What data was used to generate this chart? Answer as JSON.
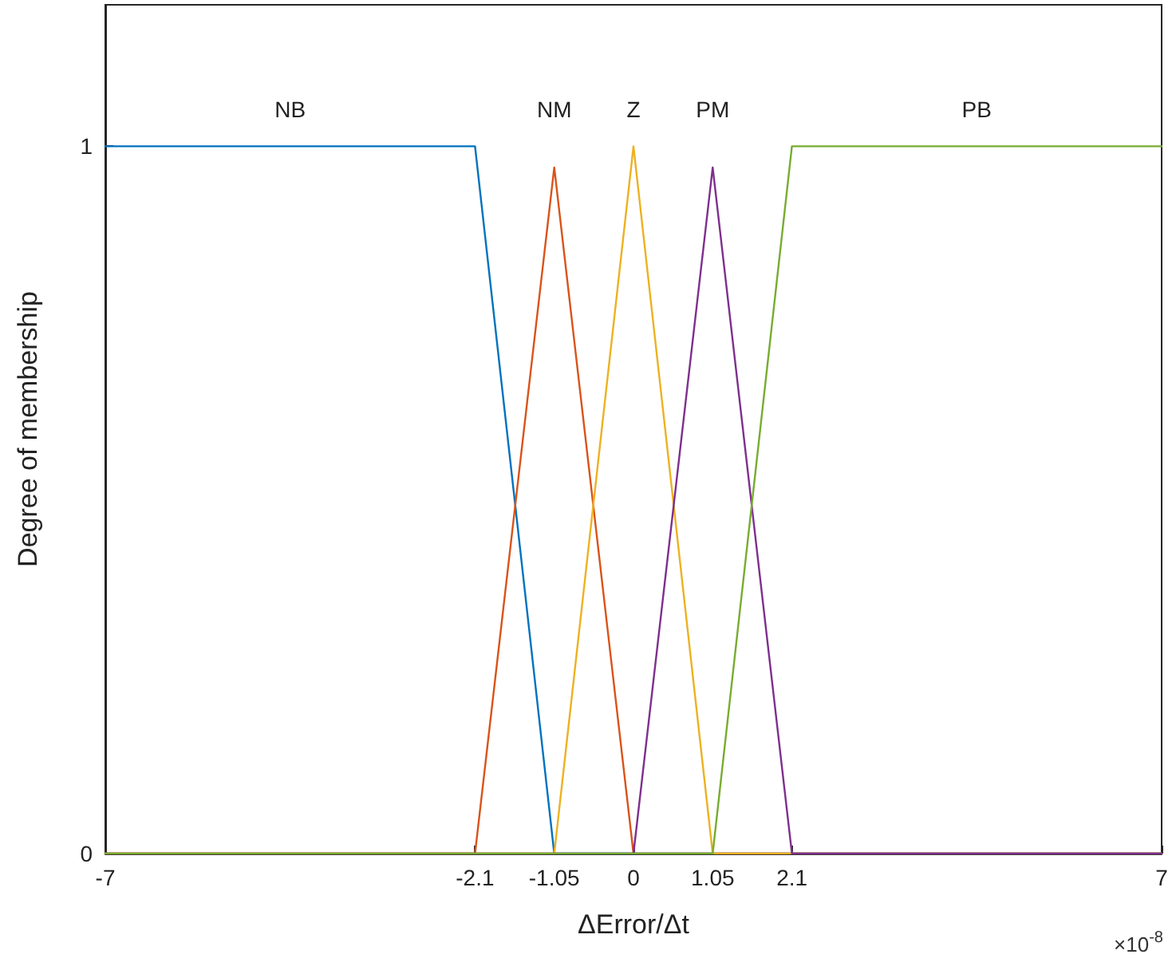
{
  "chart_data": {
    "type": "line",
    "xlabel": "ΔError/Δt",
    "ylabel": "Degree of membership",
    "annotations": [
      "×10$^{-8}$"
    ],
    "xlim": [
      -7,
      7
    ],
    "xticks": [
      -7,
      -2.1,
      -1.05,
      0,
      1.05,
      2.1,
      7
    ],
    "ylim": [
      0,
      1.2
    ],
    "yticks": [
      0,
      1
    ],
    "grid": false,
    "legend": false,
    "marker": "none",
    "line_style": "solid",
    "series": [
      {
        "name": "NB",
        "color": "#0072bd",
        "x": [
          -7,
          -2.1,
          -1.05,
          7
        ],
        "values": [
          1,
          1,
          0,
          0
        ]
      },
      {
        "name": "NM",
        "color": "#d95319",
        "x": [
          -7,
          -2.1,
          -1.05,
          0,
          7
        ],
        "values": [
          0,
          0,
          0.97,
          0,
          0
        ]
      },
      {
        "name": "Z",
        "color": "#edb120",
        "x": [
          -7,
          -1.05,
          0,
          1.05,
          7
        ],
        "values": [
          0,
          0,
          1,
          0,
          0
        ]
      },
      {
        "name": "PM",
        "color": "#7e2f8e",
        "x": [
          -7,
          0,
          1.05,
          2.1,
          7
        ],
        "values": [
          0,
          0,
          0.97,
          0,
          0
        ]
      },
      {
        "name": "PB",
        "color": "#77ac30",
        "x": [
          -7,
          1.05,
          2.1,
          7
        ],
        "values": [
          0,
          0,
          1,
          1
        ]
      }
    ]
  }
}
